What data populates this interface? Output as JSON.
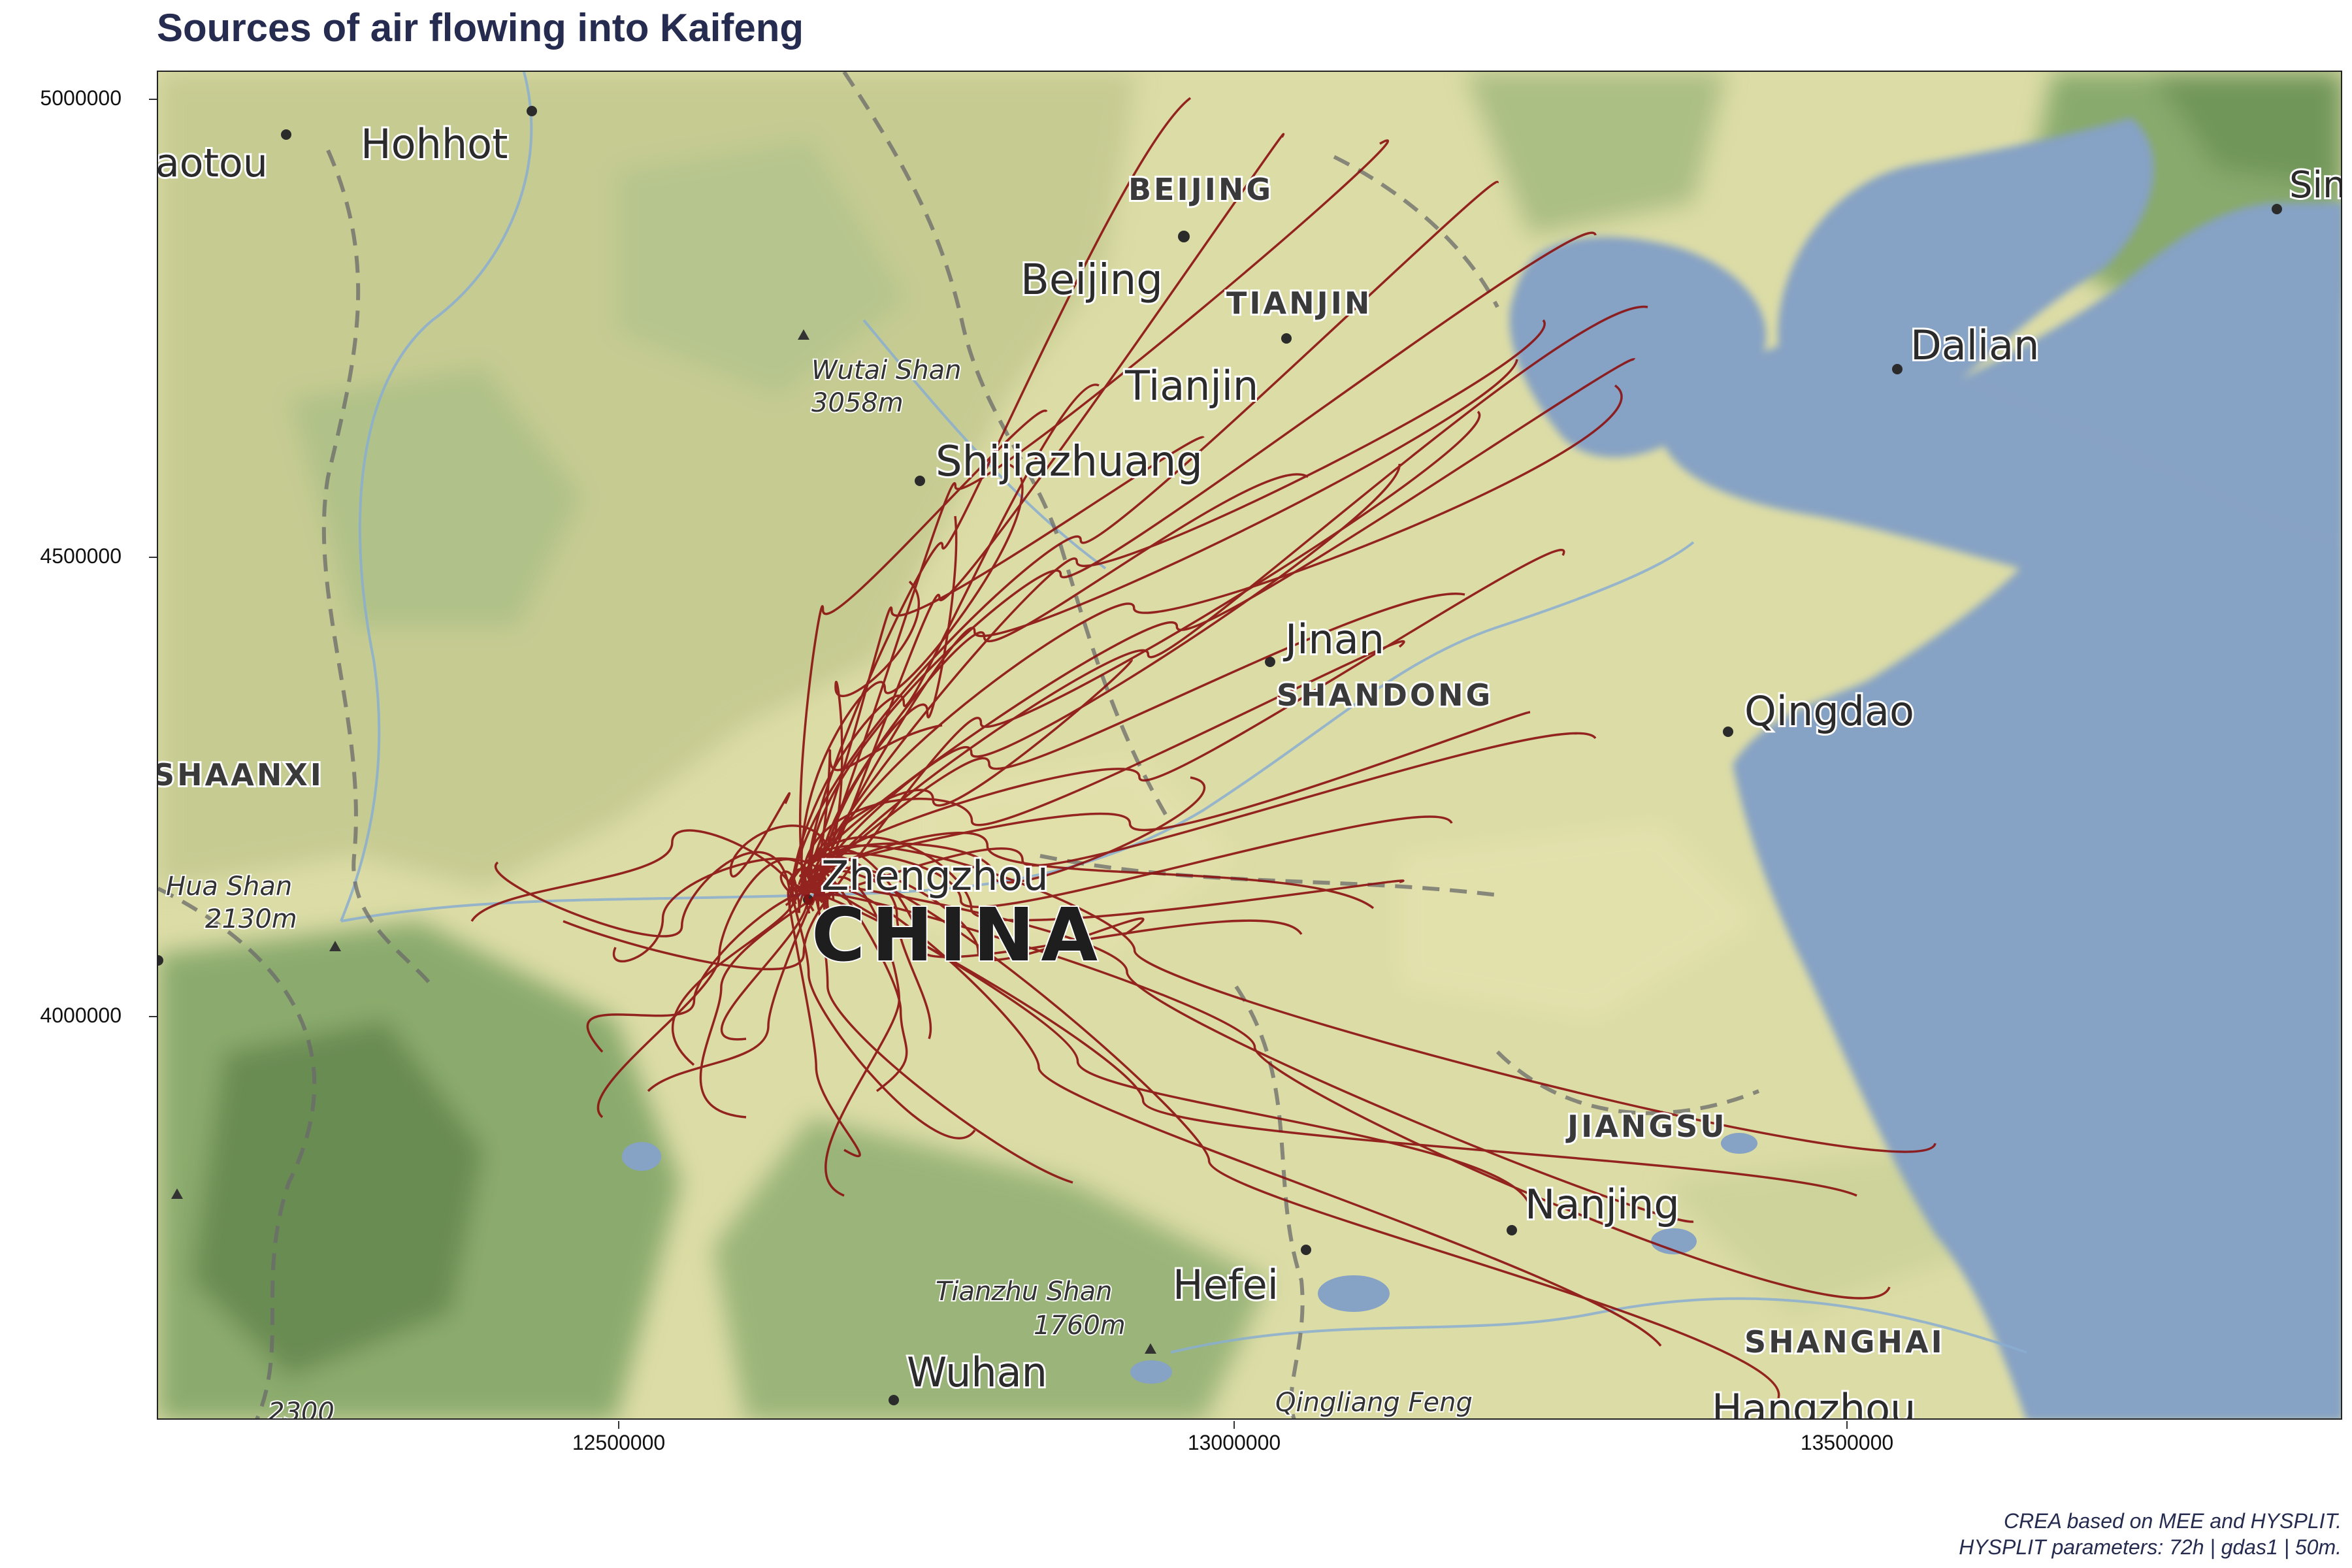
{
  "title": "Sources of air flowing into Kaifeng",
  "caption": {
    "line1": "CREA based on MEE and HYSPLIT.",
    "line2": "HYSPLIT parameters: 72h | gdas1 | 50m."
  },
  "axes": {
    "y_ticks": [
      "5000000",
      "4500000",
      "4000000"
    ],
    "x_ticks": [
      "12500000",
      "13000000",
      "13500000"
    ]
  },
  "map": {
    "country_label": "CHINA",
    "cities": [
      "aotou",
      "Hohhot",
      "Beijing",
      "Tianjin",
      "Shijiazhuang",
      "Jinan",
      "Qingdao",
      "Dalian",
      "Zhengzhou",
      "Nanjing",
      "Hefei",
      "Wuhan",
      "Hangzhou",
      "Sin"
    ],
    "provinces": [
      "BEIJING",
      "TIANJIN",
      "SHANDONG",
      "SHAANXI",
      "JIANGSU",
      "SHANGHAI"
    ],
    "peaks": [
      {
        "name": "Wutai Shan",
        "elev": "3058m"
      },
      {
        "name": "Hua Shan",
        "elev": "2130m"
      },
      {
        "name": "Tianzhu Shan",
        "elev": "1760m"
      },
      {
        "name": "Qingliang Feng",
        "elev": ""
      },
      {
        "name": "",
        "elev": "2300"
      }
    ],
    "colors": {
      "land": "#dcdca6",
      "sea": "#86a2c4",
      "forest": "#6f9a5a",
      "trajectory": "#8b1010"
    }
  }
}
